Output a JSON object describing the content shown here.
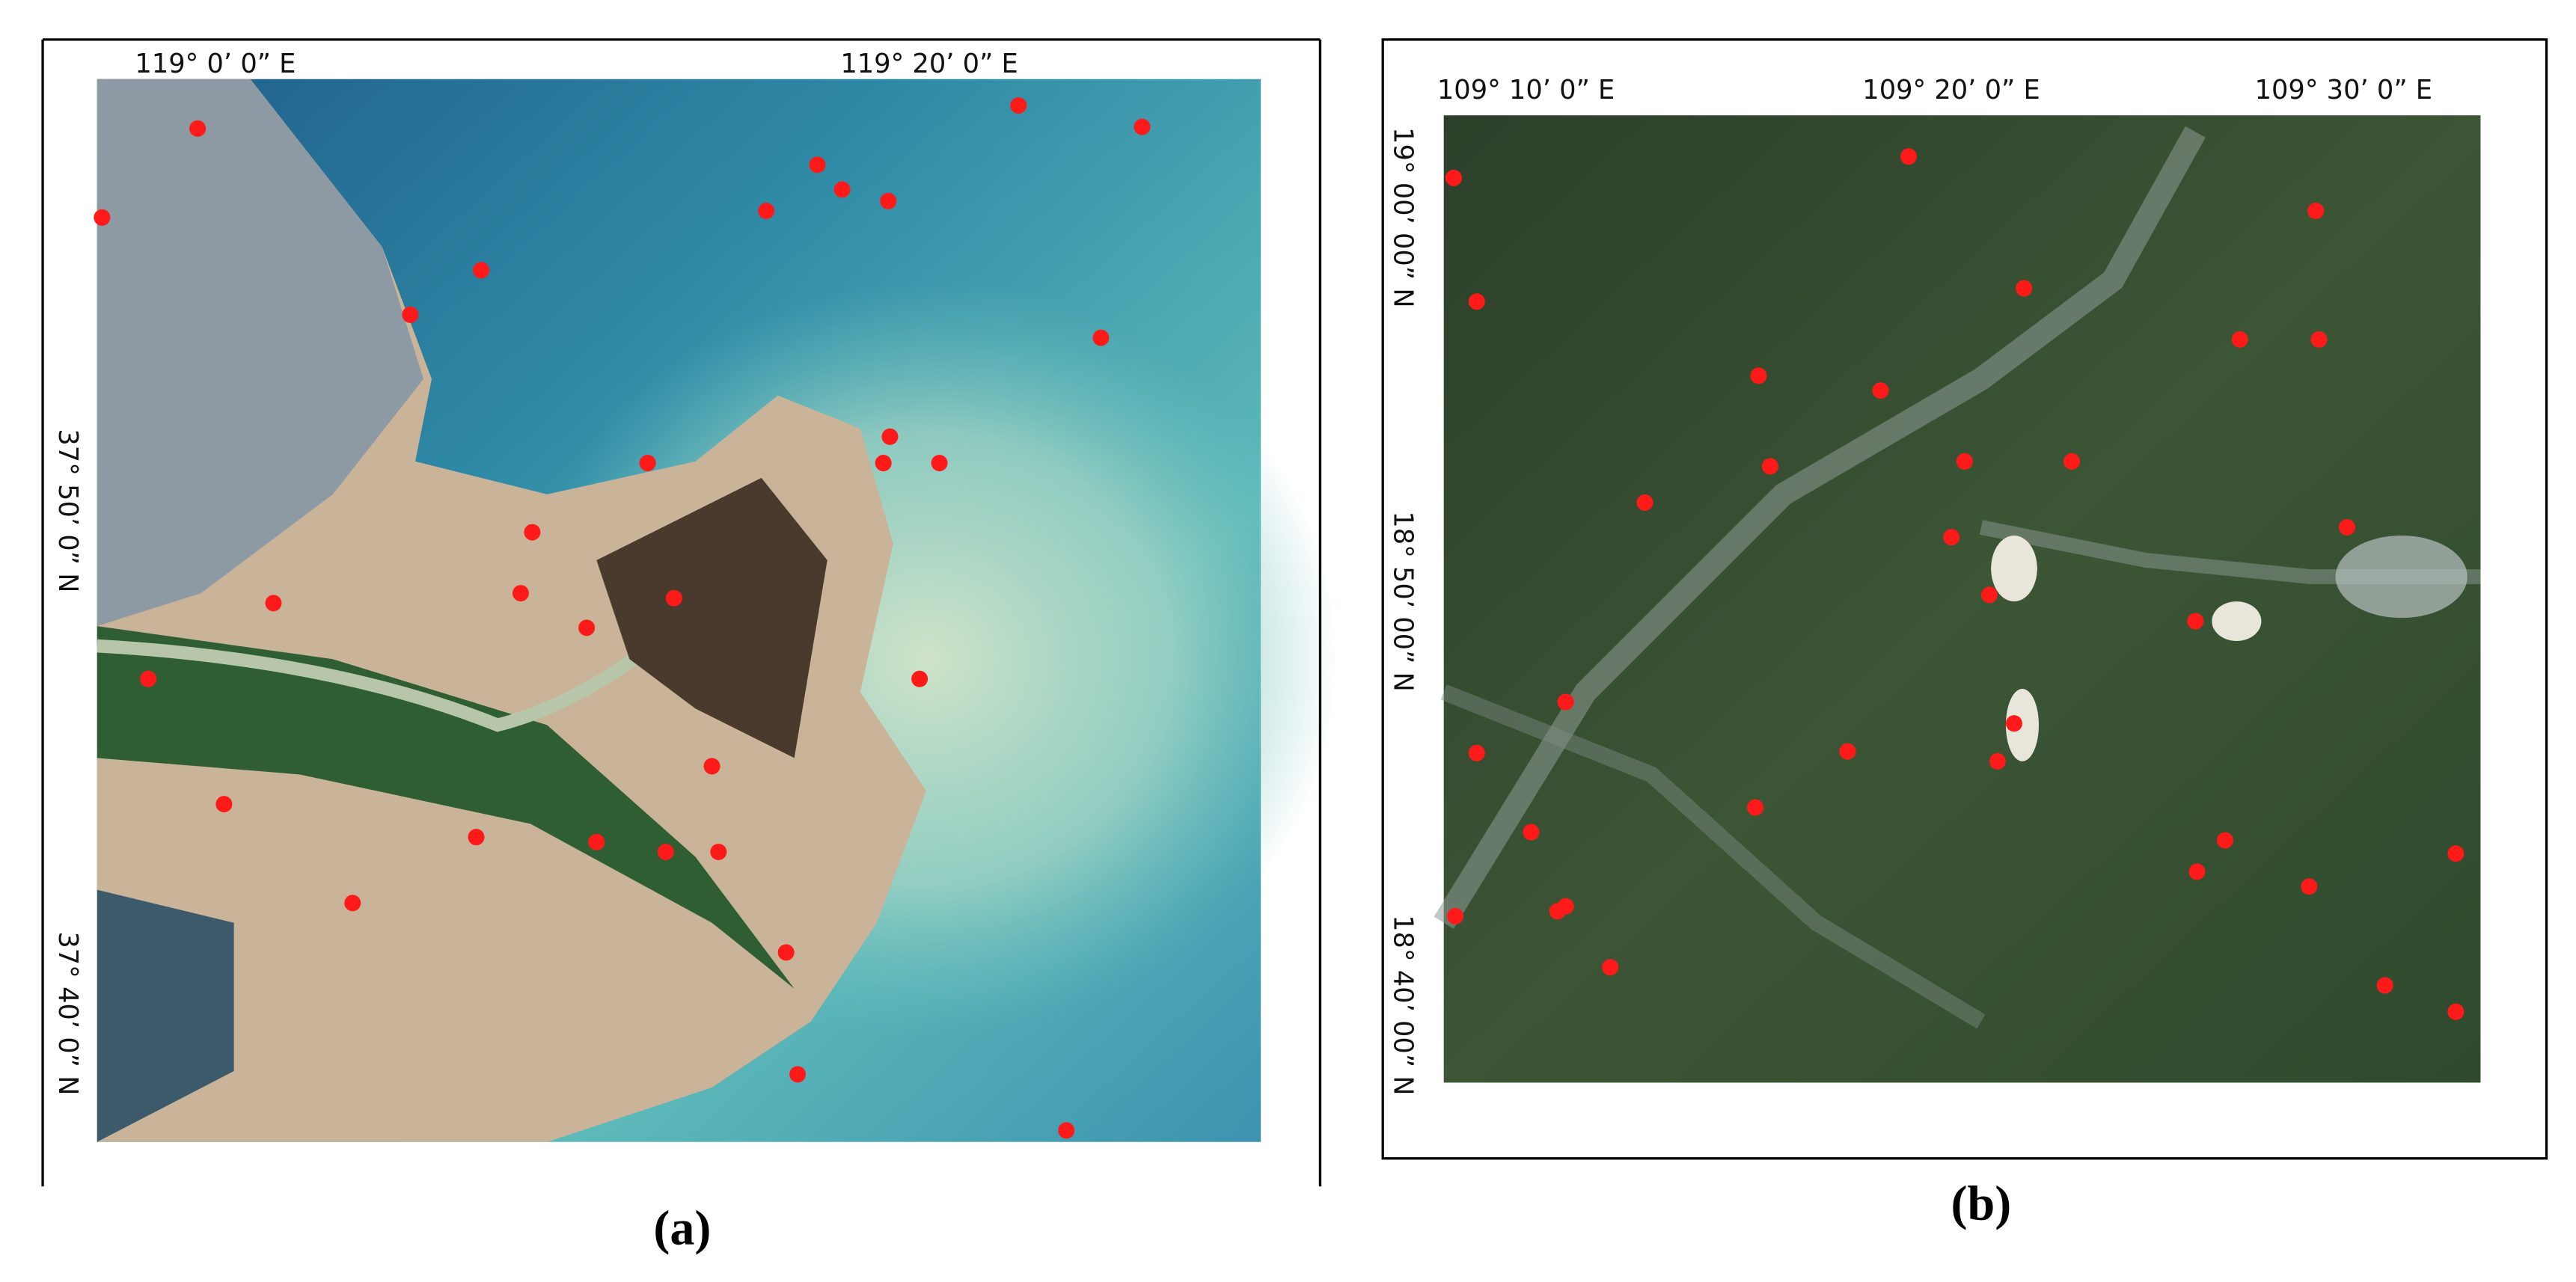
{
  "panels": [
    {
      "caption": "(a)",
      "top_labels": [
        "119°  0’  0” E",
        "119°  20’  0” E"
      ],
      "left_labels": [
        "37°  50’  0” N",
        "37°  40’  0” N"
      ]
    },
    {
      "caption": "(b)",
      "top_labels": [
        "109°  10’  0” E",
        "109°  20’  0” E",
        "109°  30’  0” E"
      ],
      "left_labels": [
        "19°  00’  00” N",
        "18°  50’  00” N",
        "18°  40’  00” N"
      ]
    }
  ]
}
